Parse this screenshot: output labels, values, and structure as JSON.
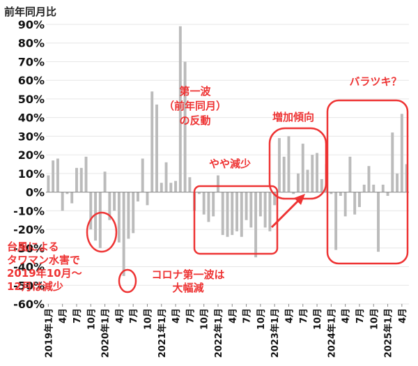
{
  "chart_data": {
    "type": "bar",
    "ylabel": "前年同月比",
    "ylim": [
      -60,
      90
    ],
    "yticks": [
      "90%",
      "80%",
      "70%",
      "60%",
      "50%",
      "40%",
      "30%",
      "20%",
      "10%",
      "0%",
      "-10%",
      "-20%",
      "-30%",
      "-40%",
      "-50%",
      "-60%"
    ],
    "ytick_values": [
      90,
      80,
      70,
      60,
      50,
      40,
      30,
      20,
      10,
      0,
      -10,
      -20,
      -30,
      -40,
      -50,
      -60
    ],
    "start": "2019-01",
    "x_labels": [
      "2019年1月",
      "4月",
      "7月",
      "10月",
      "2020年1月",
      "4月",
      "7月",
      "10月",
      "2021年1月",
      "4月",
      "7月",
      "10月",
      "2022年1月",
      "4月",
      "7月",
      "10月",
      "2023年1月",
      "4月",
      "7月",
      "10月",
      "2024年1月",
      "4月",
      "7月",
      "10月",
      "2025年1月",
      "4月"
    ],
    "values": [
      9,
      17,
      18,
      -10,
      -1,
      -6,
      13,
      13,
      19,
      -20,
      -26,
      -30,
      11,
      -15,
      -10,
      -27,
      -45,
      -25,
      -22,
      -5,
      18,
      -7,
      54,
      47,
      5,
      16,
      5,
      6,
      89,
      70,
      8,
      -10,
      -1,
      -12,
      -16,
      -13,
      9,
      -23,
      -24,
      -23,
      -21,
      -24,
      -15,
      -19,
      -35,
      -13,
      -19,
      -21,
      -7,
      29,
      19,
      30,
      -1,
      10,
      26,
      12,
      20,
      21,
      7,
      15,
      -1,
      -31,
      -2,
      -13,
      19,
      -12,
      -8,
      4,
      14,
      4,
      -32,
      4,
      -2,
      32,
      10,
      42,
      15
    ],
    "bar_color": "#bbbbbb",
    "annotation_color": "#ee3333",
    "annotations": [
      {
        "id": "typhoon",
        "lines": [
          "台風による",
          "タワマン水害で",
          "2019年10月～",
          "12月は減少"
        ]
      },
      {
        "id": "covid-first",
        "lines": [
          "コロナ第一波は",
          "大幅減"
        ]
      },
      {
        "id": "rebound",
        "lines": [
          "第一波",
          "（前年同月）",
          "の反動"
        ]
      },
      {
        "id": "slight-decrease",
        "lines": [
          "やや減少"
        ]
      },
      {
        "id": "increasing",
        "lines": [
          "増加傾向"
        ]
      },
      {
        "id": "variance",
        "lines": [
          "バラツキ？"
        ]
      }
    ]
  }
}
